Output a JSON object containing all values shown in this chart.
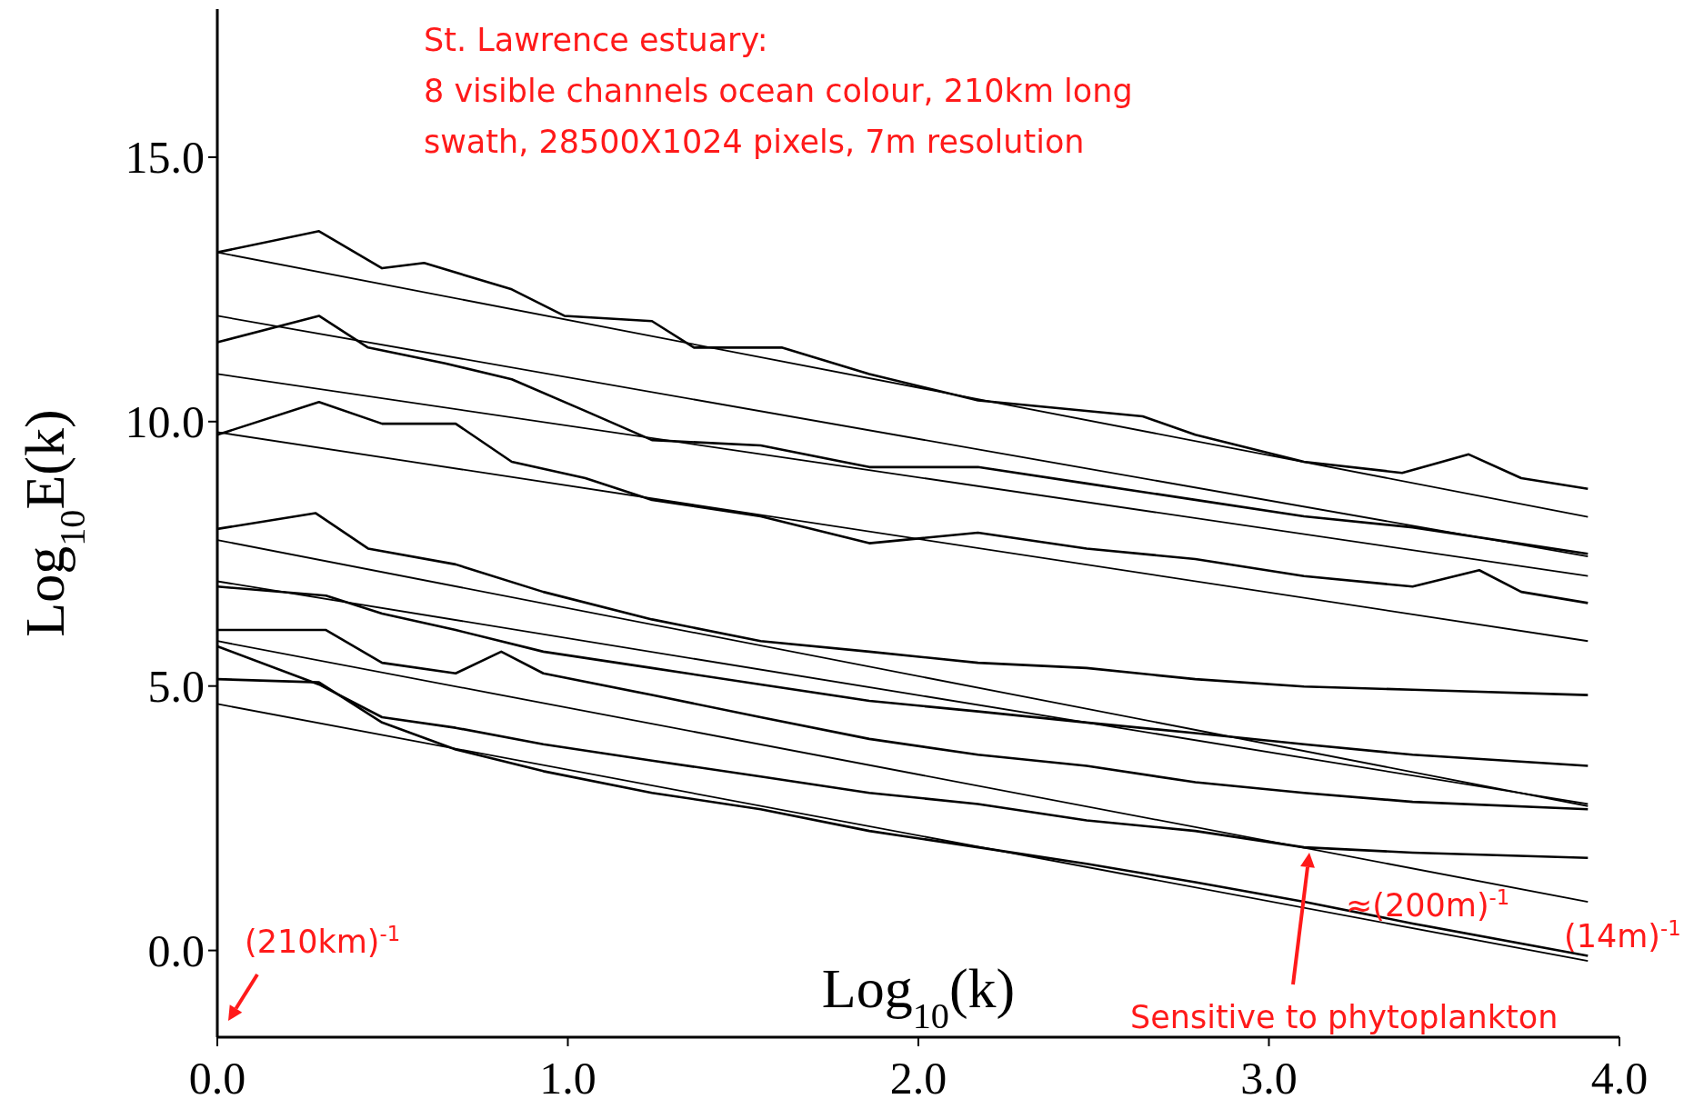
{
  "chart_data": {
    "type": "line",
    "xlabel": "Log$_{10}$(k)",
    "ylabel": "Log$_{10}$E(k)",
    "xlim": [
      0,
      4.0
    ],
    "ylim": [
      -1.64,
      17.8
    ],
    "xticks": [
      {
        "value": 0,
        "label": "0.0"
      },
      {
        "value": 1,
        "label": "1.0"
      },
      {
        "value": 2,
        "label": "2.0"
      },
      {
        "value": 3,
        "label": "3.0"
      },
      {
        "value": 4,
        "label": "4.0"
      }
    ],
    "yticks": [
      {
        "value": 0,
        "label": "0.0"
      },
      {
        "value": 5,
        "label": "5.0"
      },
      {
        "value": 10,
        "label": "10.0"
      },
      {
        "value": 15,
        "label": "15.0"
      }
    ],
    "grid": false,
    "marker": "none",
    "line_style": "solid",
    "annotations": [
      "St. Lawrence estuary:",
      "8 visible channels ocean colour, 210km long",
      "swath, 28500X1024 pixels, 7m resolution",
      "(210km)$^{-1}$",
      "≈(200m)$^{-1}$",
      "Sensitive to phytoplankton",
      "(14m)$^{-1}$"
    ],
    "series": [
      {
        "color": "#000000",
        "x": [
          0,
          0.29,
          0.47,
          0.59,
          0.84,
          0.99,
          1.24,
          1.36,
          1.61,
          1.86,
          2.17,
          2.64,
          2.79,
          3.1,
          3.38,
          3.57,
          3.72,
          3.91
        ],
        "values": [
          13.2,
          13.6,
          12.9,
          13.0,
          12.5,
          12.0,
          11.9,
          11.4,
          11.4,
          10.9,
          10.4,
          10.1,
          9.75,
          9.24,
          9.03,
          9.38,
          8.93,
          8.73
        ]
      },
      {
        "color": "#000000",
        "x": [
          0,
          0.29,
          0.43,
          0.65,
          0.84,
          1.05,
          1.24,
          1.55,
          1.86,
          2.17,
          2.48,
          2.79,
          3.1,
          3.41,
          3.91
        ],
        "values": [
          11.5,
          12.0,
          11.4,
          11.1,
          10.8,
          10.2,
          9.65,
          9.55,
          9.14,
          9.14,
          8.83,
          8.52,
          8.21,
          8.0,
          7.5
        ]
      },
      {
        "color": "#000000",
        "x": [
          0,
          0.29,
          0.47,
          0.68,
          0.84,
          1.05,
          1.24,
          1.55,
          1.86,
          2.17,
          2.48,
          2.79,
          3.1,
          3.41,
          3.6,
          3.72,
          3.91
        ],
        "values": [
          9.75,
          10.37,
          9.96,
          9.96,
          9.24,
          8.93,
          8.52,
          8.21,
          7.7,
          7.9,
          7.6,
          7.4,
          7.08,
          6.88,
          7.19,
          6.78,
          6.57
        ]
      },
      {
        "color": "#000000",
        "x": [
          0,
          0.28,
          0.43,
          0.68,
          0.93,
          1.24,
          1.55,
          1.86,
          2.17,
          2.48,
          2.79,
          3.1,
          3.41,
          3.91
        ],
        "values": [
          7.97,
          8.27,
          7.6,
          7.3,
          6.78,
          6.26,
          5.85,
          5.65,
          5.44,
          5.34,
          5.13,
          4.99,
          4.93,
          4.83
        ]
      },
      {
        "color": "#000000",
        "x": [
          0,
          0.31,
          0.47,
          0.68,
          0.93,
          1.24,
          1.55,
          1.86,
          2.17,
          2.48,
          2.79,
          3.1,
          3.41,
          3.91
        ],
        "values": [
          6.88,
          6.71,
          6.37,
          6.06,
          5.65,
          5.34,
          5.03,
          4.72,
          4.52,
          4.31,
          4.11,
          3.9,
          3.7,
          3.49
        ]
      },
      {
        "color": "#000000",
        "x": [
          0,
          0.31,
          0.47,
          0.68,
          0.81,
          0.93,
          1.24,
          1.55,
          1.86,
          2.17,
          2.48,
          2.79,
          3.1,
          3.41,
          3.91
        ],
        "values": [
          6.06,
          6.06,
          5.44,
          5.24,
          5.65,
          5.24,
          4.83,
          4.41,
          4.0,
          3.7,
          3.49,
          3.18,
          2.98,
          2.81,
          2.67
        ]
      },
      {
        "color": "#000000",
        "x": [
          0,
          0.29,
          0.47,
          0.68,
          0.93,
          1.24,
          1.55,
          1.86,
          2.17,
          2.48,
          2.79,
          3.1,
          3.41,
          3.91
        ],
        "values": [
          5.75,
          5.03,
          4.41,
          4.21,
          3.9,
          3.59,
          3.29,
          2.98,
          2.77,
          2.46,
          2.26,
          1.95,
          1.85,
          1.75
        ]
      },
      {
        "color": "#000000",
        "x": [
          0,
          0.29,
          0.47,
          0.68,
          0.93,
          1.24,
          1.55,
          1.86,
          2.17,
          2.48,
          2.79,
          3.1,
          3.41,
          3.91
        ],
        "values": [
          5.13,
          5.07,
          4.31,
          3.8,
          3.39,
          2.98,
          2.67,
          2.26,
          1.95,
          1.64,
          1.29,
          0.92,
          0.51,
          -0.1
        ]
      },
      {
        "color": "#000000",
        "x": [
          0,
          3.91
        ],
        "values": [
          13.2,
          8.2
        ]
      },
      {
        "color": "#000000",
        "x": [
          0,
          3.91
        ],
        "values": [
          12.0,
          7.45
        ]
      },
      {
        "color": "#000000",
        "x": [
          0,
          3.91
        ],
        "values": [
          10.9,
          7.08
        ]
      },
      {
        "color": "#000000",
        "x": [
          0,
          3.91
        ],
        "values": [
          9.8,
          5.85
        ]
      },
      {
        "color": "#000000",
        "x": [
          0,
          3.91
        ],
        "values": [
          7.76,
          2.73
        ]
      },
      {
        "color": "#000000",
        "x": [
          0,
          3.91
        ],
        "values": [
          6.98,
          2.77
        ]
      },
      {
        "color": "#000000",
        "x": [
          0,
          3.91
        ],
        "values": [
          5.85,
          0.92
        ]
      },
      {
        "color": "#000000",
        "x": [
          0,
          3.91
        ],
        "values": [
          4.66,
          -0.2
        ]
      }
    ]
  }
}
